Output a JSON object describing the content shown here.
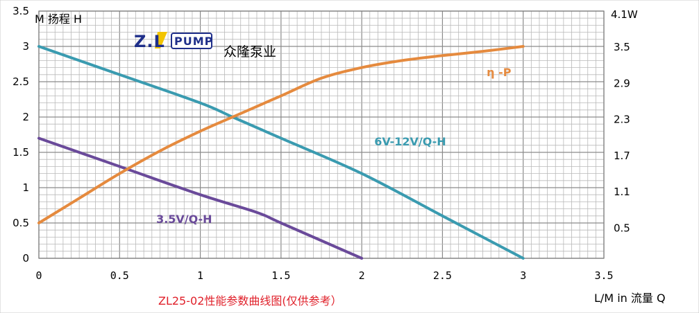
{
  "logo": {
    "text_left": "Z.L",
    "text_right": "PUMP",
    "colors": {
      "brand_blue": "#1f2f8a",
      "accent_yellow": "#f2c400"
    }
  },
  "brand_name": "众隆泵业",
  "caption": "ZL25-02性能参数曲线图(仅供参考）",
  "chart_data": {
    "type": "line",
    "x_label": "L/M in  流量 Q",
    "y_left_label": "M  扬程 H",
    "y_right_label": "4.1W",
    "xlim": [
      0,
      3.5
    ],
    "ylim_left": [
      0,
      3.5
    ],
    "ylim_right": [
      0,
      4.1
    ],
    "x_ticks": [
      "0",
      "0.5",
      "1",
      "1.5",
      "2",
      "2.5",
      "3",
      "3.5"
    ],
    "y_left_ticks": [
      "0",
      "0.5",
      "1",
      "1.5",
      "2",
      "2.5",
      "3",
      "3.5"
    ],
    "y_right_ticks": [
      {
        "label": "0.5",
        "value": 0.5
      },
      {
        "label": "1.1",
        "value": 1.1
      },
      {
        "label": "1.7",
        "value": 1.7
      },
      {
        "label": "2.3",
        "value": 2.3
      },
      {
        "label": "2.9",
        "value": 2.9
      },
      {
        "label": "3.5",
        "value": 3.5
      }
    ],
    "grid": true,
    "series": [
      {
        "name": "6V-12V/Q-H",
        "color": "#3a9bb0",
        "axis": "left",
        "x": [
          0,
          0.5,
          1,
          1.2,
          1.5,
          2,
          2.5,
          3
        ],
        "y": [
          3.0,
          2.6,
          2.2,
          2.0,
          1.7,
          1.2,
          0.6,
          0.0
        ]
      },
      {
        "name": "3.5V/Q-H",
        "color": "#6a4a9a",
        "axis": "left",
        "x": [
          0,
          0.5,
          1,
          1.35,
          1.5,
          2
        ],
        "y": [
          1.7,
          1.3,
          0.9,
          0.65,
          0.5,
          0.0
        ]
      },
      {
        "name": "η -P",
        "color": "#e58a3e",
        "axis": "left",
        "x": [
          0,
          0.25,
          0.5,
          0.75,
          1,
          1.25,
          1.5,
          1.75,
          2,
          2.25,
          2.5,
          2.75,
          3
        ],
        "y": [
          0.5,
          0.85,
          1.2,
          1.52,
          1.8,
          2.05,
          2.3,
          2.55,
          2.7,
          2.8,
          2.87,
          2.93,
          3.0
        ]
      }
    ],
    "label_positions": {
      "6V-12V/Q-H": {
        "x": 2.3,
        "y": 1.6
      },
      "3.5V/Q-H": {
        "x": 0.9,
        "y": 0.5
      },
      "η -P": {
        "x": 2.85,
        "y": 2.58
      }
    }
  }
}
